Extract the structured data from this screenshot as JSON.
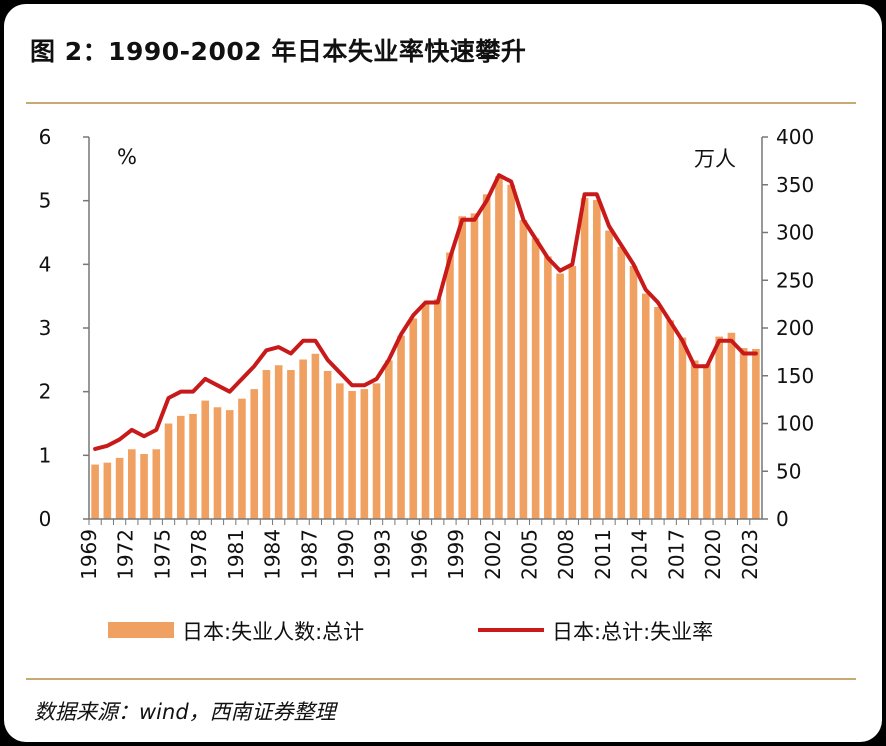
{
  "figure": {
    "title": "图 2：1990-2002 年日本失业率快速攀升",
    "source": "数据来源：wind，西南证券整理"
  },
  "chart_data": {
    "type": "bar+line",
    "x": [
      1969,
      1970,
      1971,
      1972,
      1973,
      1974,
      1975,
      1976,
      1977,
      1978,
      1979,
      1980,
      1981,
      1982,
      1983,
      1984,
      1985,
      1986,
      1987,
      1988,
      1989,
      1990,
      1991,
      1992,
      1993,
      1994,
      1995,
      1996,
      1997,
      1998,
      1999,
      2000,
      2001,
      2002,
      2003,
      2004,
      2005,
      2006,
      2007,
      2008,
      2009,
      2010,
      2011,
      2012,
      2013,
      2014,
      2015,
      2016,
      2017,
      2018,
      2019,
      2020,
      2021,
      2022,
      2023
    ],
    "x_tick_labels": [
      "1969",
      "1972",
      "1975",
      "1978",
      "1981",
      "1984",
      "1987",
      "1990",
      "1993",
      "1996",
      "1999",
      "2002",
      "2005",
      "2008",
      "2011",
      "2014",
      "2017",
      "2020",
      "2023"
    ],
    "left_axis": {
      "unit_label": "%",
      "ylim": [
        0,
        6
      ],
      "ticks": [
        "0",
        "1",
        "2",
        "3",
        "4",
        "5",
        "6"
      ]
    },
    "right_axis": {
      "unit_label": "万人",
      "ylim": [
        0,
        400
      ],
      "ticks": [
        "0",
        "50",
        "100",
        "150",
        "200",
        "250",
        "300",
        "350",
        "400"
      ]
    },
    "series": [
      {
        "name": "日本:失业人数:总计",
        "kind": "bar",
        "axis": "right",
        "color": "#f0a060",
        "values": [
          57,
          59,
          64,
          73,
          68,
          73,
          100,
          108,
          110,
          124,
          117,
          114,
          126,
          136,
          156,
          161,
          156,
          167,
          173,
          155,
          142,
          134,
          136,
          142,
          166,
          192,
          210,
          225,
          230,
          279,
          317,
          320,
          340,
          359,
          350,
          313,
          294,
          275,
          257,
          265,
          336,
          334,
          302,
          285,
          265,
          236,
          222,
          208,
          190,
          166,
          162,
          191,
          195,
          179,
          178
        ]
      },
      {
        "name": "日本:总计:失业率",
        "kind": "line",
        "axis": "left",
        "color": "#c81a1a",
        "values": [
          1.1,
          1.15,
          1.25,
          1.4,
          1.3,
          1.4,
          1.9,
          2.0,
          2.0,
          2.2,
          2.1,
          2.0,
          2.2,
          2.4,
          2.65,
          2.7,
          2.6,
          2.8,
          2.8,
          2.5,
          2.3,
          2.1,
          2.1,
          2.2,
          2.5,
          2.9,
          3.2,
          3.4,
          3.4,
          4.1,
          4.7,
          4.7,
          5.0,
          5.4,
          5.3,
          4.7,
          4.4,
          4.1,
          3.9,
          4.0,
          5.1,
          5.1,
          4.6,
          4.3,
          4.0,
          3.6,
          3.4,
          3.1,
          2.8,
          2.4,
          2.4,
          2.8,
          2.8,
          2.6,
          2.6
        ]
      }
    ],
    "legend_position": "bottom",
    "grid": false
  }
}
